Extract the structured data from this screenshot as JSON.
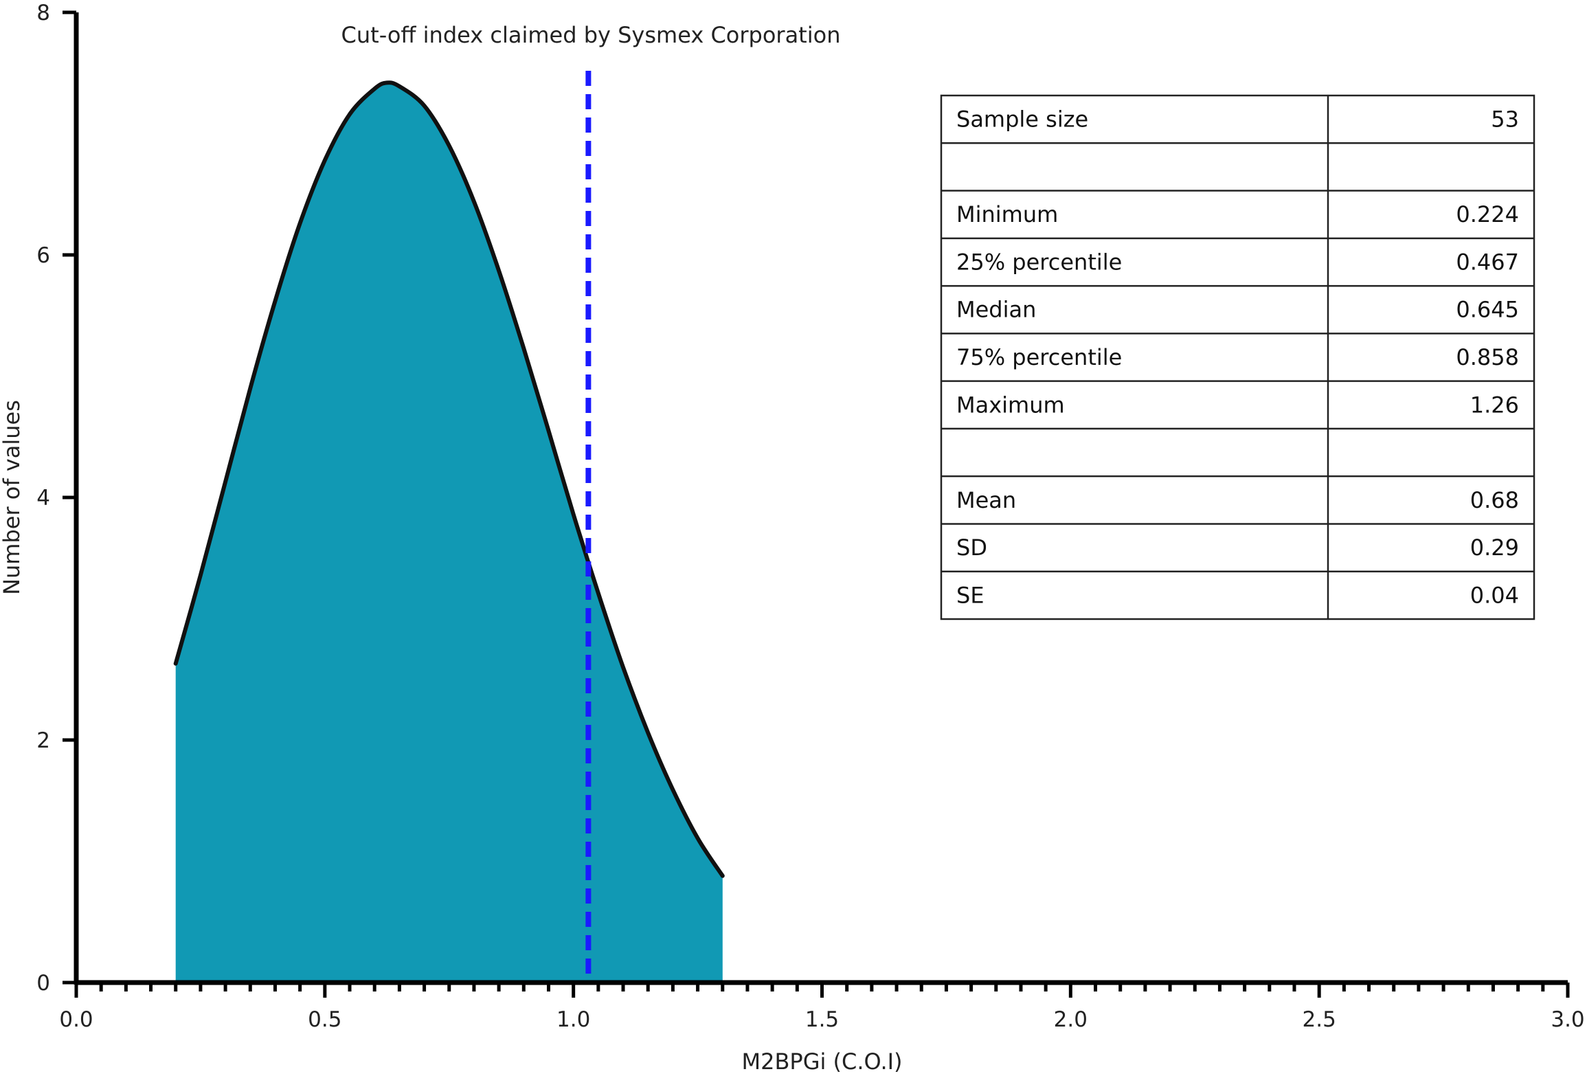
{
  "chart_data": {
    "type": "area",
    "title": "",
    "xlabel": "M2BPGi (C.O.I)",
    "ylabel": "Number of values",
    "xlim": [
      0,
      3
    ],
    "ylim": [
      0,
      8
    ],
    "x_ticks": [
      0,
      0.5,
      1,
      1.5,
      2,
      2.5,
      3
    ],
    "x_tick_labels": [
      "0.0",
      "0.5",
      "1.0",
      "1.5",
      "2.0",
      "2.5",
      "3.0"
    ],
    "x_minor_step": 0.05,
    "y_ticks": [
      0,
      2,
      4,
      6,
      8
    ],
    "y_tick_labels": [
      "0",
      "2",
      "4",
      "6",
      "8"
    ],
    "grid": false,
    "series": [
      {
        "x": [
          0.2,
          0.25,
          0.3,
          0.35,
          0.4,
          0.45,
          0.5,
          0.55,
          0.6,
          0.625,
          0.65,
          0.7,
          0.75,
          0.8,
          0.85,
          0.9,
          0.95,
          1.0,
          1.05,
          1.1,
          1.15,
          1.2,
          1.25,
          1.3
        ],
        "values": [
          2.63,
          3.36,
          4.13,
          4.9,
          5.62,
          6.26,
          6.78,
          7.16,
          7.37,
          7.42,
          7.39,
          7.23,
          6.9,
          6.44,
          5.87,
          5.23,
          4.55,
          3.86,
          3.21,
          2.6,
          2.06,
          1.59,
          1.19,
          0.88
        ],
        "color": "#1199b4"
      }
    ],
    "cutoff": {
      "x": 1.03,
      "label": "Cut-off index claimed by Sysmex Corporation",
      "color": "#1a1aff"
    },
    "stats_table": {
      "rows": [
        {
          "label": "Sample size",
          "value": "53"
        },
        {
          "label": "",
          "value": ""
        },
        {
          "label": "Minimum",
          "value": "0.224"
        },
        {
          "label": "25% percentile",
          "value": "0.467"
        },
        {
          "label": "Median",
          "value": "0.645"
        },
        {
          "label": "75% percentile",
          "value": "0.858"
        },
        {
          "label": "Maximum",
          "value": "1.26"
        },
        {
          "label": "",
          "value": ""
        },
        {
          "label": "Mean",
          "value": "0.68"
        },
        {
          "label": "SD",
          "value": "0.29"
        },
        {
          "label": "SE",
          "value": "0.04"
        }
      ]
    }
  }
}
